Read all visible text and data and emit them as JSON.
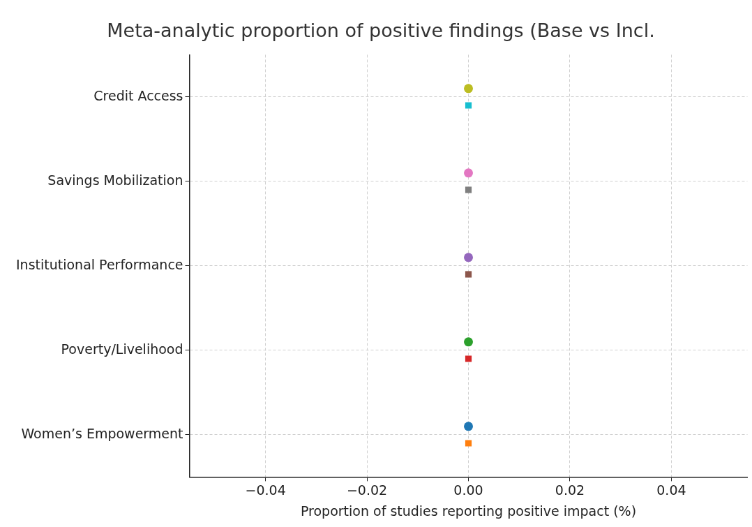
{
  "chart_data": {
    "type": "scatter",
    "orientation": "horizontal",
    "title": "Meta-analytic proportion of positive findings (Base vs Incl.",
    "xlabel": "Proportion of studies reporting positive impact (%)",
    "categories": [
      "Credit Access",
      "Savings Mobilization",
      "Institutional Performance",
      "Poverty/Livelihood",
      "Women’s Empowerment"
    ],
    "series": [
      {
        "marker": "circle",
        "colors": [
          "#bcbd22",
          "#e377c2",
          "#9467bd",
          "#2ca02c",
          "#1f77b4"
        ],
        "values": [
          0,
          0,
          0,
          0,
          0
        ]
      },
      {
        "marker": "square",
        "colors": [
          "#17becf",
          "#7f7f7f",
          "#8c564b",
          "#d62728",
          "#ff7f0e"
        ],
        "values": [
          0,
          0,
          0,
          0,
          0
        ]
      }
    ],
    "xlim": [
      -0.055,
      0.055
    ],
    "xticks": [
      {
        "value": -0.04,
        "label": "−0.04"
      },
      {
        "value": -0.02,
        "label": "−0.02"
      },
      {
        "value": 0,
        "label": "0.00"
      },
      {
        "value": 0.02,
        "label": "0.02"
      },
      {
        "value": 0.04,
        "label": "0.04"
      }
    ],
    "grid": true,
    "legend": false
  }
}
